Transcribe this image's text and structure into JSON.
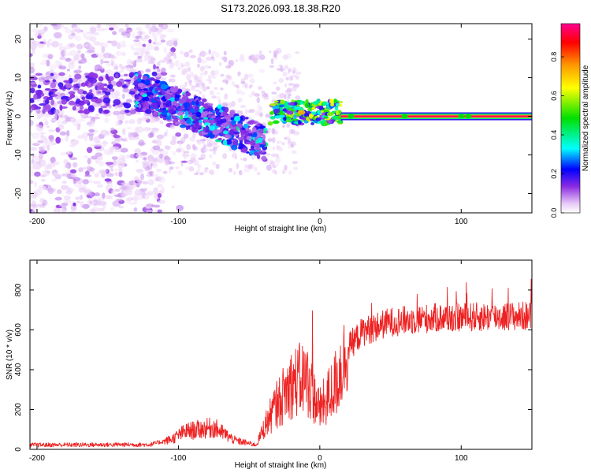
{
  "chart_data": [
    {
      "type": "heatmap",
      "title": "S173.2026.093.18.38.R20",
      "xlabel": "Height of straight line (km)",
      "ylabel": "Frequency (Hz)",
      "xlim": [
        -205,
        150
      ],
      "ylim": [
        -25,
        24
      ],
      "xticks": [
        -200,
        -100,
        0,
        100
      ],
      "yticks": [
        -20,
        -10,
        0,
        10,
        20
      ],
      "colorbar": {
        "label": "Normalized spectral amplitude",
        "range": [
          0,
          0.97
        ],
        "ticks": [
          0.0,
          0.2,
          0.4,
          0.6,
          0.8
        ]
      },
      "features": [
        {
          "name": "scattered-noise",
          "x_range": [
            -205,
            -110
          ],
          "freq_range": [
            -25,
            24
          ],
          "amplitude": 0.15
        },
        {
          "name": "descending-streak",
          "x_start": -130,
          "x_end": -38,
          "freq_start": 7,
          "freq_end": -7,
          "amplitude": 0.35
        },
        {
          "name": "transition-cluster",
          "x_range": [
            -35,
            15
          ],
          "freq_center": 1,
          "amplitude": 0.55
        },
        {
          "name": "steady-carrier",
          "x_range": [
            15,
            150
          ],
          "freq": 0,
          "amplitude": 0.97
        }
      ]
    },
    {
      "type": "line",
      "xlabel": "Height of straight line (km)",
      "ylabel": "SNR (10 * v/v)",
      "xlim": [
        -205,
        150
      ],
      "ylim": [
        0,
        950
      ],
      "xticks": [
        -200,
        -100,
        0,
        100
      ],
      "yticks": [
        0,
        200,
        400,
        600,
        800
      ],
      "series": [
        {
          "name": "SNR",
          "color": "#ee2222",
          "profile_x": [
            -205,
            -120,
            -105,
            -95,
            -75,
            -60,
            -45,
            -38,
            -30,
            -20,
            -10,
            0,
            10,
            20,
            30,
            50,
            80,
            150
          ],
          "profile_y": [
            22,
            24,
            50,
            90,
            110,
            45,
            22,
            130,
            230,
            330,
            360,
            200,
            310,
            510,
            590,
            640,
            660,
            670
          ]
        }
      ]
    }
  ]
}
